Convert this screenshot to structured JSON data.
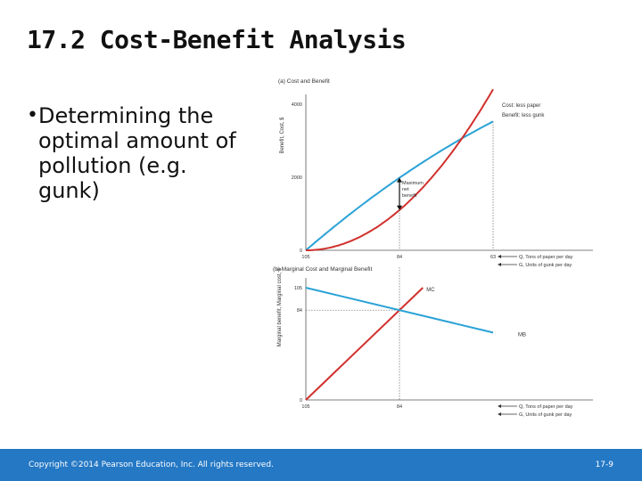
{
  "slide": {
    "title": "17.2  Cost-Benefit Analysis",
    "bullet": "Determining the optimal amount of pollution (e.g. gunk)",
    "footer_left": "Copyright ©2014 Pearson Education, Inc. All rights reserved.",
    "footer_right": "17-9"
  },
  "colors": {
    "footer_bg": "#2478c4",
    "cost": "#d0312d",
    "benefit": "#2aa2d6"
  },
  "chart_data": [
    {
      "type": "line",
      "title": "(a) Cost and Benefit",
      "ylabel": "Benefit, Cost, $",
      "ylim": [
        0,
        4000
      ],
      "yticks": [
        0,
        2000,
        4000
      ],
      "xticks": [
        "105",
        "84",
        "63"
      ],
      "xlabel_rows": [
        "Q, Tons of paper per day",
        "G, Units of gunk per day"
      ],
      "x": [
        0,
        10.5,
        21,
        31.5,
        42
      ],
      "series": [
        {
          "name": "Cost: less paper",
          "values": [
            0,
            276,
            1103,
            2481,
            4410
          ]
        },
        {
          "name": "Benefit: less gunk",
          "values": [
            0,
            1047,
            1985,
            2812,
            3528
          ]
        }
      ],
      "annotation": "Maximum net benefit",
      "annotation_x": 21
    },
    {
      "type": "line",
      "title": "(b) Marginal Cost and Marginal Benefit",
      "ylabel": "Marginal benefit, Marginal cost, $",
      "ylim": [
        0,
        120
      ],
      "yticks": [
        0,
        84,
        105
      ],
      "xticks": [
        "105",
        "84"
      ],
      "xlabel_rows": [
        "Q, Tons of paper per day",
        "G, Units of gunk per day"
      ],
      "series": [
        {
          "name": "MC",
          "x": [
            0,
            26.25
          ],
          "values": [
            0,
            105
          ]
        },
        {
          "name": "MB",
          "x": [
            0,
            42
          ],
          "values": [
            105,
            63
          ]
        }
      ],
      "intersection": [
        21,
        84
      ]
    }
  ]
}
